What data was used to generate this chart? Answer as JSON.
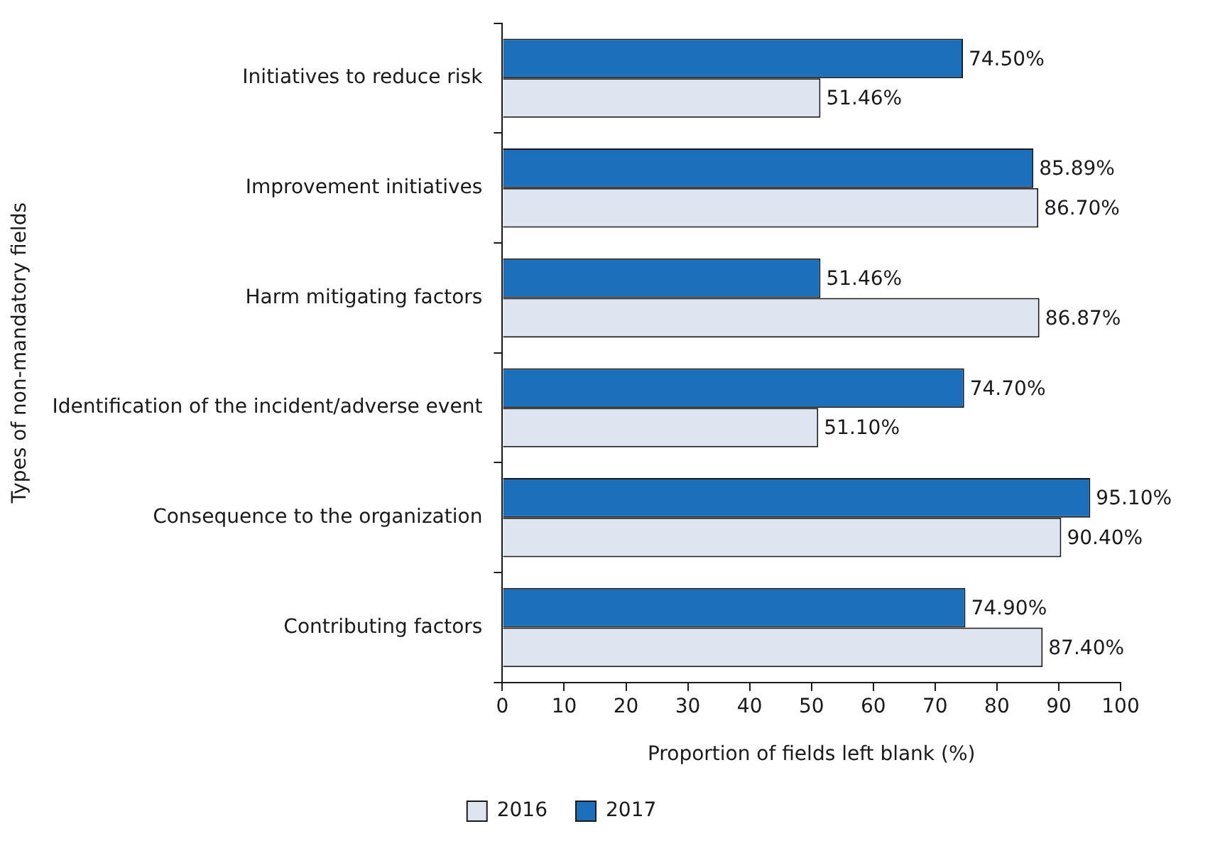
{
  "chart_data": {
    "type": "bar",
    "orientation": "horizontal",
    "xlabel": "Proportion of fields left blank (%)",
    "ylabel": "Types of non-mandatory fields",
    "categories": [
      "Initiatives to reduce risk",
      "Improvement initiatives",
      "Harm mitigating factors",
      "Identification of the incident/adverse event",
      "Consequence to the organization",
      "Contributing factors"
    ],
    "series": [
      {
        "name": "2017",
        "color": "#1c6fba",
        "values": [
          74.5,
          85.89,
          51.46,
          74.7,
          95.1,
          74.9
        ],
        "value_labels": [
          "74.50%",
          "85.89%",
          "51.46%",
          "74.70%",
          "95.10%",
          "74.90%"
        ]
      },
      {
        "name": "2016",
        "color": "#dfe5f0",
        "values": [
          51.46,
          86.7,
          86.87,
          51.1,
          90.4,
          87.4
        ],
        "value_labels": [
          "51.46%",
          "86.70%",
          "86.87%",
          "51.10%",
          "90.40%",
          "87.40%"
        ]
      }
    ],
    "xlim": [
      0,
      100
    ],
    "xticks": [
      0,
      10,
      20,
      30,
      40,
      50,
      60,
      70,
      80,
      90,
      100
    ],
    "grid": false,
    "legend": "bottom"
  }
}
